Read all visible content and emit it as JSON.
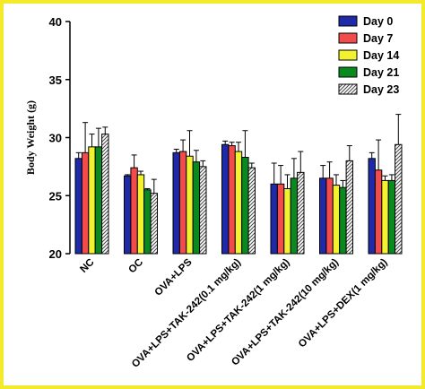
{
  "chart_data": {
    "type": "bar",
    "title": "",
    "xlabel": "",
    "ylabel": "Body Weight (g)",
    "ylim": [
      20,
      40
    ],
    "yticks": [
      20,
      25,
      30,
      35,
      40
    ],
    "grid": false,
    "legend_position": "top-right",
    "categories": [
      "NC",
      "OC",
      "OVA+LPS",
      "OVA+LPS+TAK-242(0.1 mg/kg)",
      "OVA+LPS+TAK-242(1 mg/kg)",
      "OVA+LPS+TAK-242(10 mg/kg)",
      "OVA+LPS+DEX(1 mg/kg)"
    ],
    "series": [
      {
        "name": "Day 0",
        "color": "#1e2aa8",
        "pattern": "solid",
        "values": [
          28.2,
          26.7,
          28.7,
          29.4,
          26.0,
          26.5,
          28.2
        ],
        "errors": [
          0.5,
          0.1,
          0.3,
          0.3,
          1.8,
          1.1,
          0.5
        ]
      },
      {
        "name": "Day 7",
        "color": "#f24b4b",
        "pattern": "solid",
        "values": [
          28.7,
          27.4,
          28.8,
          29.3,
          26.0,
          26.5,
          27.2
        ],
        "errors": [
          2.6,
          1.1,
          1.0,
          0.3,
          1.6,
          1.4,
          2.6
        ]
      },
      {
        "name": "Day 14",
        "color": "#f2f230",
        "pattern": "solid",
        "values": [
          29.2,
          26.8,
          28.4,
          28.8,
          25.6,
          25.9,
          26.3
        ],
        "errors": [
          1.1,
          0.3,
          2.2,
          0.8,
          1.2,
          0.9,
          0.4
        ]
      },
      {
        "name": "Day 21",
        "color": "#0a8a1e",
        "pattern": "solid",
        "values": [
          29.2,
          25.5,
          27.9,
          28.3,
          26.5,
          25.7,
          26.3
        ],
        "errors": [
          1.6,
          0.1,
          1.0,
          2.3,
          1.7,
          0.6,
          0.5
        ]
      },
      {
        "name": "Day 23 ",
        "color": "#555555",
        "pattern": "hatch",
        "values": [
          30.3,
          25.2,
          27.5,
          27.4,
          27.0,
          28.0,
          29.4
        ],
        "errors": [
          0.6,
          1.2,
          0.5,
          0.4,
          1.8,
          1.3,
          2.6
        ]
      }
    ]
  }
}
